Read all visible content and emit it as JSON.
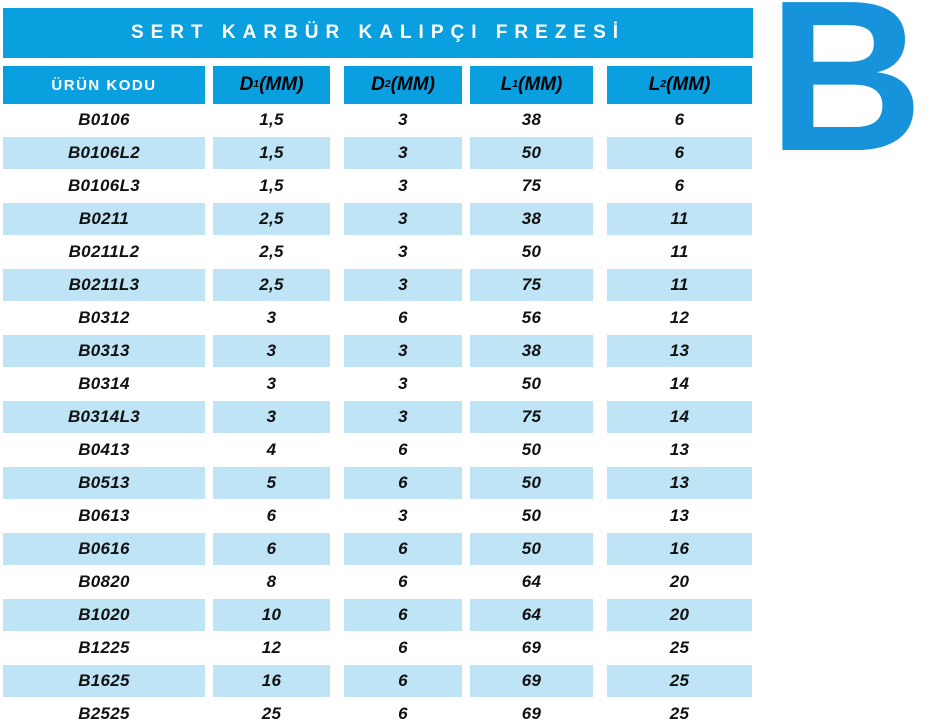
{
  "theme": {
    "accent": "#0aa0e0",
    "row_alt": "#bee4f6",
    "letter": "#1693db",
    "header_text": "#ffffff"
  },
  "title": "SERT KARBÜR KALIPÇI FREZESİ",
  "section_letter": "B",
  "table": {
    "headers": [
      {
        "base": "ÜRÜN KODU",
        "sub": "",
        "unit": ""
      },
      {
        "base": "D",
        "sub": "1",
        "unit": "(MM)"
      },
      {
        "base": "D",
        "sub": "2",
        "unit": "(MM)"
      },
      {
        "base": "L",
        "sub": "1",
        "unit": "(MM)"
      },
      {
        "base": "L",
        "sub": "2",
        "unit": "(MM)"
      }
    ],
    "rows": [
      [
        "B0106",
        "1,5",
        "3",
        "38",
        "6"
      ],
      [
        "B0106L2",
        "1,5",
        "3",
        "50",
        "6"
      ],
      [
        "B0106L3",
        "1,5",
        "3",
        "75",
        "6"
      ],
      [
        "B0211",
        "2,5",
        "3",
        "38",
        "11"
      ],
      [
        "B0211L2",
        "2,5",
        "3",
        "50",
        "11"
      ],
      [
        "B0211L3",
        "2,5",
        "3",
        "75",
        "11"
      ],
      [
        "B0312",
        "3",
        "6",
        "56",
        "12"
      ],
      [
        "B0313",
        "3",
        "3",
        "38",
        "13"
      ],
      [
        "B0314",
        "3",
        "3",
        "50",
        "14"
      ],
      [
        "B0314L3",
        "3",
        "3",
        "75",
        "14"
      ],
      [
        "B0413",
        "4",
        "6",
        "50",
        "13"
      ],
      [
        "B0513",
        "5",
        "6",
        "50",
        "13"
      ],
      [
        "B0613",
        "6",
        "3",
        "50",
        "13"
      ],
      [
        "B0616",
        "6",
        "6",
        "50",
        "16"
      ],
      [
        "B0820",
        "8",
        "6",
        "64",
        "20"
      ],
      [
        "B1020",
        "10",
        "6",
        "64",
        "20"
      ],
      [
        "B1225",
        "12",
        "6",
        "69",
        "25"
      ],
      [
        "B1625",
        "16",
        "6",
        "69",
        "25"
      ],
      [
        "B2525",
        "25",
        "6",
        "69",
        "25"
      ]
    ]
  }
}
